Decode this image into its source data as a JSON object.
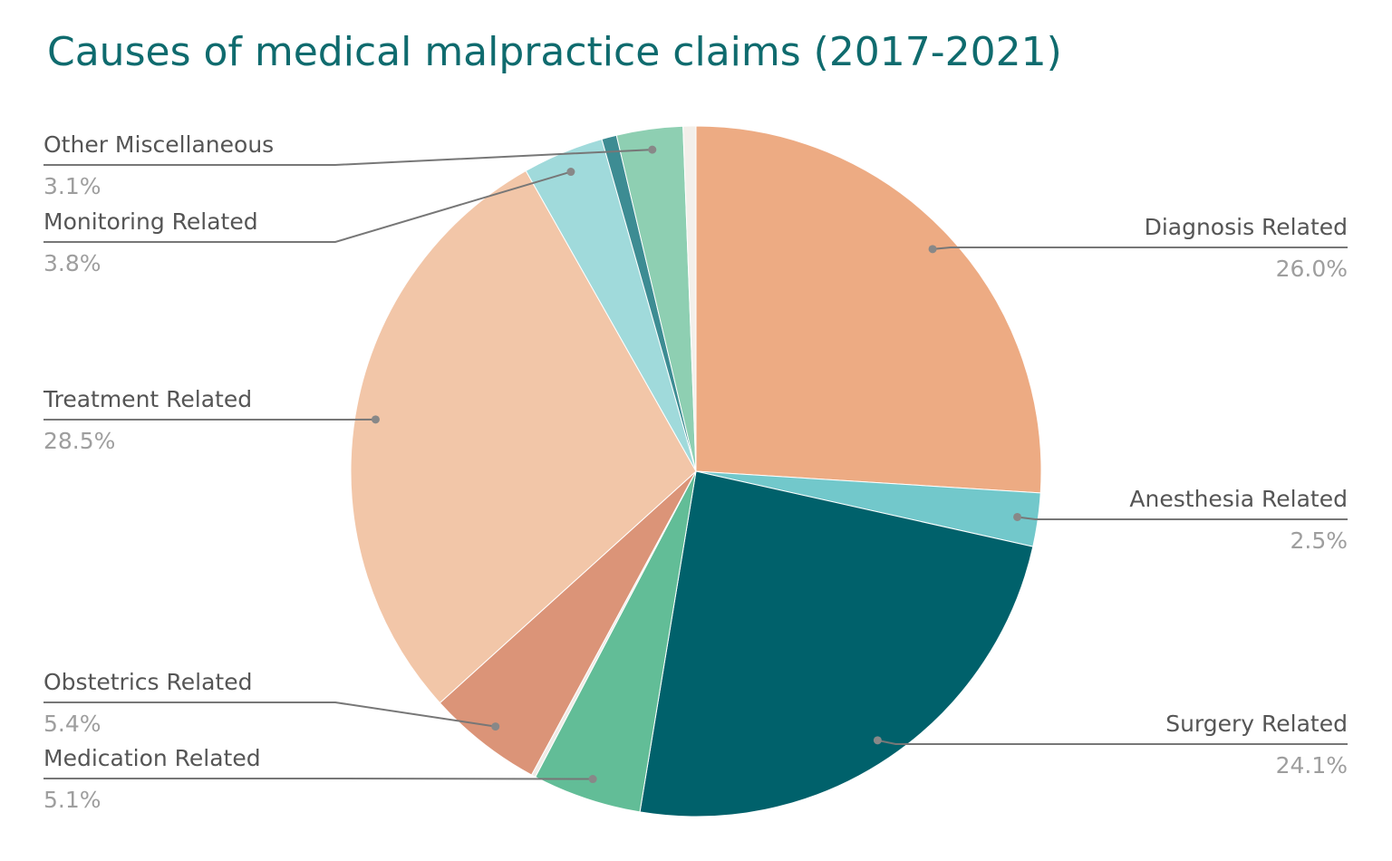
{
  "chart_data": {
    "type": "pie",
    "title": "Causes of medical malpractice claims (2017-2021)",
    "categories": [
      "Diagnosis Related",
      "Anesthesia Related",
      "Surgery Related",
      "Medication Related",
      null,
      "Obstetrics Related",
      "Treatment Related",
      "Monitoring Related",
      null,
      "Other Miscellaneous",
      null
    ],
    "values": [
      26.0,
      2.5,
      24.1,
      5.1,
      0.2,
      5.4,
      28.5,
      3.8,
      0.7,
      3.1,
      0.6
    ],
    "value_labels": [
      "26.0%",
      "2.5%",
      "24.1%",
      "5.1%",
      null,
      "5.4%",
      "28.5%",
      "3.8%",
      null,
      "3.1%",
      null
    ],
    "colors": [
      "#edab83",
      "#72c8cb",
      "#00616b",
      "#62bd97",
      "#f0ebe6",
      "#db9478",
      "#f2c6a8",
      "#a0dadb",
      "#3d8c93",
      "#8ecfb2",
      "#f3efea"
    ]
  }
}
